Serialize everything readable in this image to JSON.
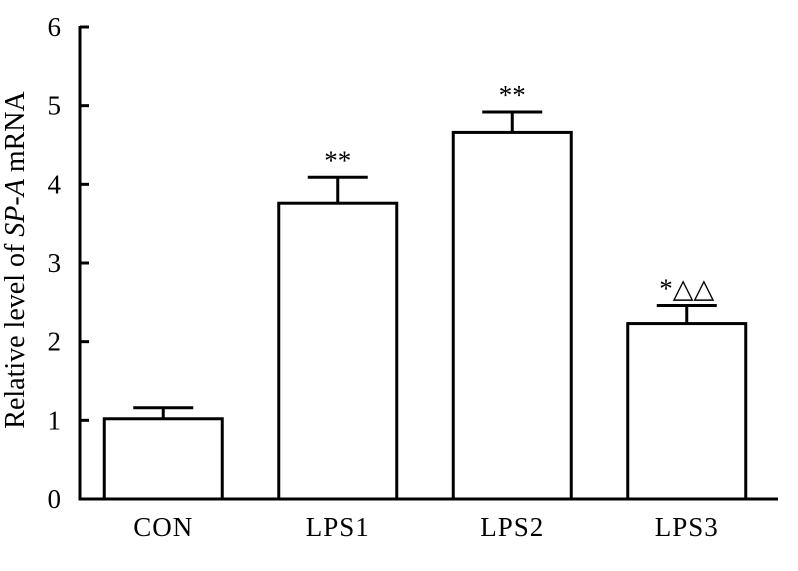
{
  "chart_data": {
    "type": "bar",
    "title": "",
    "xlabel": "",
    "ylabel": {
      "prefix": "Relative level of ",
      "gene": "SP-A",
      "suffix": " mRNA"
    },
    "ylim": [
      0,
      6
    ],
    "yticks": [
      "0",
      "1",
      "2",
      "3",
      "4",
      "5",
      "6"
    ],
    "categories": [
      "CON",
      "LPS1",
      "LPS2",
      "LPS3"
    ],
    "values": [
      1.02,
      3.76,
      4.66,
      2.23
    ],
    "errors": [
      0.14,
      0.33,
      0.26,
      0.23
    ],
    "annotations": [
      "",
      "**",
      "**",
      "*△△"
    ],
    "grid": false,
    "legend": "none"
  },
  "colors": {
    "bar_fill": "#ffffff",
    "stroke": "#000000",
    "background": "#ffffff"
  }
}
